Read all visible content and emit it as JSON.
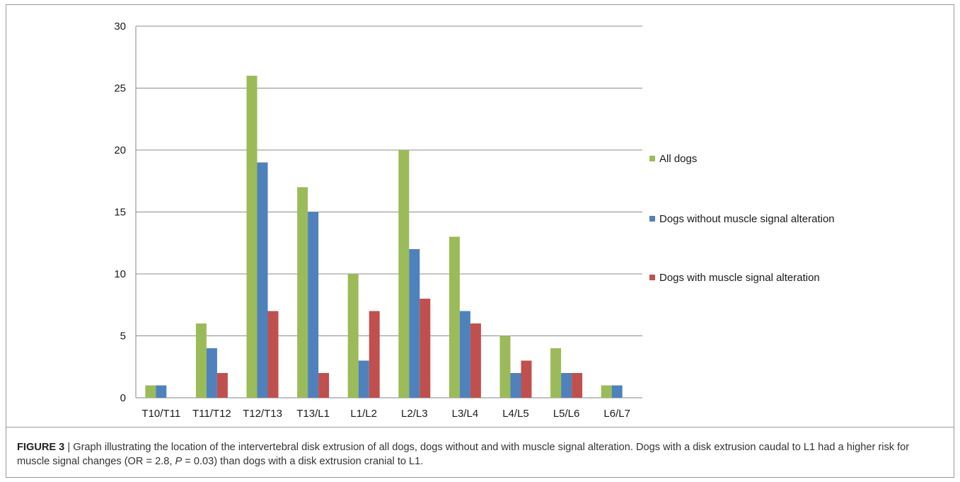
{
  "chart_data": {
    "type": "bar",
    "title": "",
    "xlabel": "",
    "ylabel": "",
    "ylim": [
      0,
      30
    ],
    "yticks": [
      0,
      5,
      10,
      15,
      20,
      25,
      30
    ],
    "grid": true,
    "legend_position": "right",
    "categories": [
      "T10/T11",
      "T11/T12",
      "T12/T13",
      "T13/L1",
      "L1/L2",
      "L2/L3",
      "L3/L4",
      "L4/L5",
      "L5/L6",
      "L6/L7"
    ],
    "series": [
      {
        "name": "All dogs",
        "color": "#9bbb59",
        "values": [
          1,
          6,
          26,
          17,
          10,
          20,
          13,
          5,
          4,
          1
        ]
      },
      {
        "name": "Dogs without muscle signal alteration",
        "color": "#4f81bd",
        "values": [
          1,
          4,
          19,
          15,
          3,
          12,
          7,
          2,
          2,
          1
        ]
      },
      {
        "name": "Dogs with muscle signal alteration",
        "color": "#c0504d",
        "values": [
          0,
          2,
          7,
          2,
          7,
          8,
          6,
          3,
          2,
          0
        ]
      }
    ]
  },
  "caption": {
    "label": "FIGURE 3",
    "separator": " | ",
    "text_before_p": "Graph illustrating the location of the intervertebral disk extrusion of all dogs, dogs without and with muscle signal alteration. Dogs with a disk extrusion caudal to L1 had a higher risk for muscle signal changes (OR = 2.8, ",
    "p_symbol": "P",
    "text_after_p": " = 0.03) than dogs with a disk extrusion cranial to L1."
  }
}
